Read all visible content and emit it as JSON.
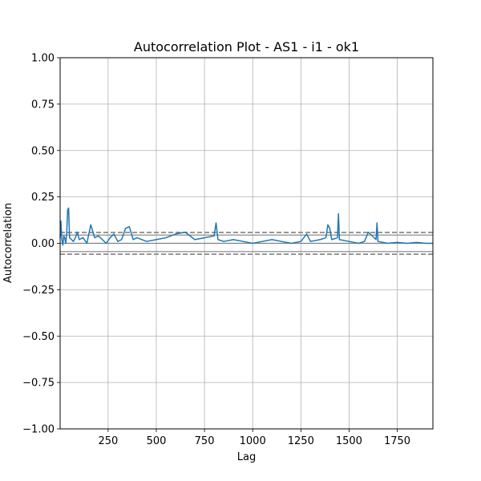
{
  "chart_data": {
    "type": "line",
    "title": "Autocorrelation Plot - AS1 - i1 - ok1",
    "xlabel": "Lag",
    "ylabel": "Autocorrelation",
    "xlim": [
      1,
      1935
    ],
    "ylim": [
      -1.0,
      1.0
    ],
    "x_ticks": [
      250,
      500,
      750,
      1000,
      1250,
      1500,
      1750
    ],
    "y_ticks": [
      -1.0,
      -0.75,
      -0.5,
      -0.25,
      0.0,
      0.25,
      0.5,
      0.75,
      1.0
    ],
    "x_tick_labels": [
      "250",
      "500",
      "750",
      "1000",
      "1250",
      "1500",
      "1750"
    ],
    "y_tick_labels": [
      "−1.00",
      "−0.75",
      "−0.50",
      "−0.25",
      "0.00",
      "0.25",
      "0.50",
      "0.75",
      "1.00"
    ],
    "grid": true,
    "confidence_bands": [
      {
        "value": 0.0587,
        "style": "dashed"
      },
      {
        "value": 0.0446,
        "style": "solid"
      },
      {
        "value": 0.0,
        "style": "solid"
      },
      {
        "value": -0.0446,
        "style": "solid"
      },
      {
        "value": -0.0587,
        "style": "dashed"
      }
    ],
    "series": [
      {
        "color": "#1f77b4",
        "x": [
          1,
          5,
          10,
          15,
          20,
          25,
          30,
          35,
          40,
          45,
          50,
          60,
          70,
          80,
          90,
          100,
          120,
          140,
          160,
          180,
          200,
          220,
          240,
          260,
          280,
          300,
          320,
          340,
          360,
          380,
          400,
          450,
          500,
          550,
          600,
          650,
          700,
          750,
          800,
          810,
          820,
          850,
          900,
          950,
          1000,
          1050,
          1100,
          1150,
          1200,
          1250,
          1280,
          1300,
          1350,
          1380,
          1390,
          1400,
          1410,
          1440,
          1445,
          1450,
          1500,
          1550,
          1580,
          1600,
          1640,
          1645,
          1650,
          1700,
          1750,
          1800,
          1850,
          1900,
          1935
        ],
        "y": [
          0.03,
          0.12,
          0.02,
          -0.01,
          0.04,
          0.03,
          0.0,
          0.05,
          0.18,
          0.19,
          0.03,
          0.02,
          0.01,
          0.03,
          0.06,
          0.02,
          0.03,
          0.0,
          0.1,
          0.03,
          0.04,
          0.02,
          0.0,
          0.03,
          0.05,
          0.01,
          0.02,
          0.08,
          0.09,
          0.02,
          0.03,
          0.01,
          0.02,
          0.03,
          0.05,
          0.06,
          0.02,
          0.03,
          0.04,
          0.11,
          0.02,
          0.01,
          0.02,
          0.01,
          0.0,
          0.01,
          0.02,
          0.01,
          0.0,
          0.01,
          0.05,
          0.01,
          0.02,
          0.03,
          0.1,
          0.08,
          0.02,
          0.03,
          0.16,
          0.02,
          0.01,
          0.0,
          0.01,
          0.06,
          0.02,
          0.11,
          0.01,
          0.0,
          0.005,
          0.0,
          0.005,
          0.0,
          0.0
        ]
      }
    ]
  }
}
